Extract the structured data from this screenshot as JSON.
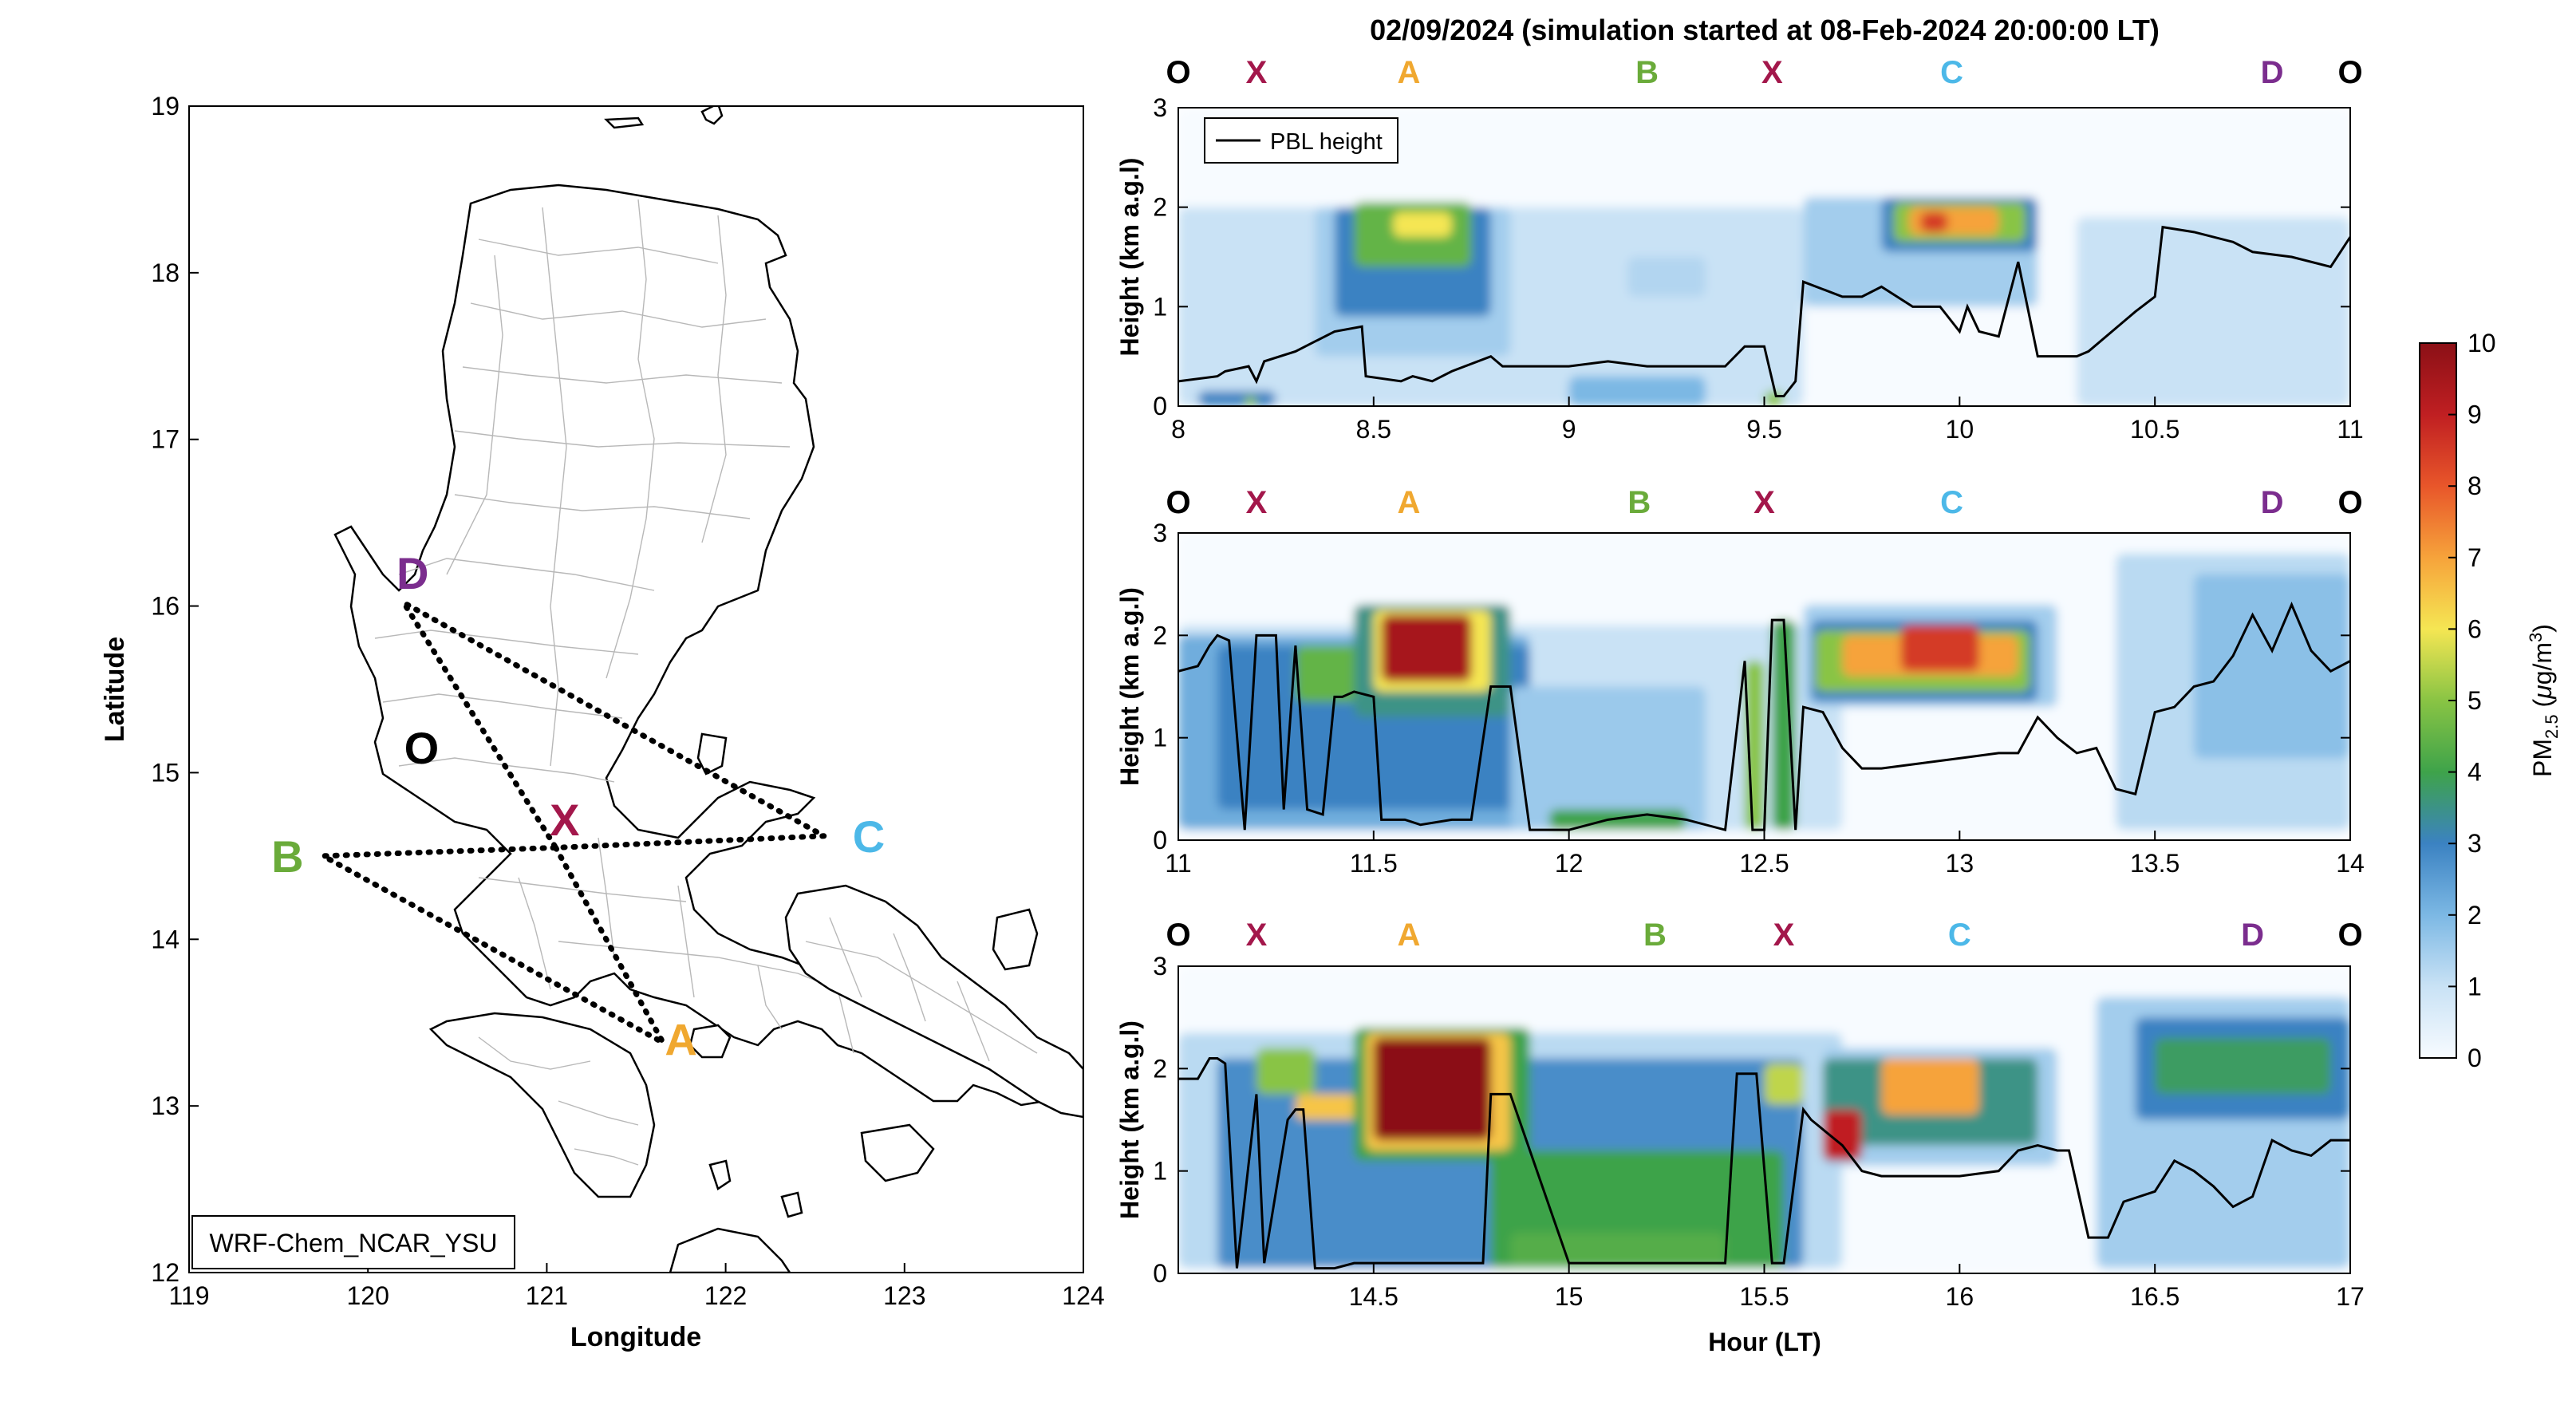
{
  "figure": {
    "title": "02/09/2024 (simulation started at 08-Feb-2024 20:00:00 LT)",
    "colors": {
      "site_O": "#000000",
      "site_X": "#a3174b",
      "site_A": "#f0a830",
      "site_B": "#6aab3a",
      "site_C": "#4cb8e8",
      "site_D": "#7b2d8e",
      "pbl_line": "#000000"
    }
  },
  "chart_data": [
    {
      "type": "map",
      "xlabel": "Longitude",
      "ylabel": "Latitude",
      "xlim": [
        119,
        124
      ],
      "ylim": [
        12,
        19
      ],
      "xticks": [
        "119",
        "120",
        "121",
        "122",
        "123",
        "124"
      ],
      "yticks": [
        "12",
        "13",
        "14",
        "15",
        "16",
        "17",
        "18",
        "19"
      ],
      "annotation": "WRF-Chem_NCAR_YSU",
      "sites": [
        {
          "id": "O",
          "lon": 120.3,
          "lat": 15.15
        },
        {
          "id": "X",
          "lon": 121.1,
          "lat": 14.72
        },
        {
          "id": "A",
          "lon": 121.75,
          "lat": 13.4
        },
        {
          "id": "B",
          "lon": 119.55,
          "lat": 14.5
        },
        {
          "id": "C",
          "lon": 122.8,
          "lat": 14.62
        },
        {
          "id": "D",
          "lon": 120.25,
          "lat": 16.2
        }
      ],
      "flight_path": [
        {
          "lon": 121.05,
          "lat": 14.55
        },
        {
          "lon": 121.65,
          "lat": 13.38
        },
        {
          "lon": 119.75,
          "lat": 14.5
        },
        {
          "lon": 121.05,
          "lat": 14.55
        },
        {
          "lon": 122.55,
          "lat": 14.62
        },
        {
          "lon": 120.2,
          "lat": 16.02
        },
        {
          "lon": 121.05,
          "lat": 14.55
        }
      ]
    },
    {
      "type": "heatmap",
      "xlabel": "",
      "ylabel": "Height (km a.g.l)",
      "xlim": [
        8,
        11
      ],
      "ylim": [
        0,
        3
      ],
      "xticks": [
        "8",
        "8.5",
        "9",
        "9.5",
        "10",
        "10.5",
        "11"
      ],
      "yticks": [
        "0",
        "1",
        "2",
        "3"
      ],
      "legend": "PBL height",
      "site_labels": [
        {
          "id": "O",
          "hour": 8.0
        },
        {
          "id": "X",
          "hour": 8.2
        },
        {
          "id": "A",
          "hour": 8.59
        },
        {
          "id": "B",
          "hour": 9.2
        },
        {
          "id": "X",
          "hour": 9.52
        },
        {
          "id": "C",
          "hour": 9.98
        },
        {
          "id": "D",
          "hour": 10.8
        },
        {
          "id": "O",
          "hour": 11.0
        }
      ],
      "pbl_height": {
        "x": [
          8.0,
          8.1,
          8.12,
          8.18,
          8.2,
          8.22,
          8.3,
          8.35,
          8.4,
          8.47,
          8.48,
          8.57,
          8.6,
          8.65,
          8.7,
          8.8,
          8.83,
          8.9,
          9.0,
          9.1,
          9.2,
          9.3,
          9.4,
          9.45,
          9.5,
          9.53,
          9.55,
          9.58,
          9.6,
          9.7,
          9.75,
          9.8,
          9.88,
          9.95,
          10.0,
          10.02,
          10.05,
          10.1,
          10.12,
          10.15,
          10.2,
          10.3,
          10.33,
          10.45,
          10.5,
          10.52,
          10.6,
          10.7,
          10.75,
          10.85,
          10.95,
          11.0
        ],
        "y": [
          0.25,
          0.3,
          0.35,
          0.4,
          0.25,
          0.45,
          0.55,
          0.65,
          0.75,
          0.8,
          0.3,
          0.25,
          0.3,
          0.25,
          0.35,
          0.5,
          0.4,
          0.4,
          0.4,
          0.45,
          0.4,
          0.4,
          0.4,
          0.6,
          0.6,
          0.1,
          0.1,
          0.25,
          1.25,
          1.1,
          1.1,
          1.2,
          1.0,
          1.0,
          0.75,
          1.0,
          0.75,
          0.7,
          1.0,
          1.45,
          0.5,
          0.5,
          0.55,
          0.95,
          1.1,
          1.8,
          1.75,
          1.65,
          1.55,
          1.5,
          1.4,
          1.7
        ]
      },
      "plumes": [
        {
          "x0": 8.0,
          "x1": 9.6,
          "y0": 0.0,
          "y1": 2.0,
          "value": 1.0
        },
        {
          "x0": 8.05,
          "x1": 8.25,
          "y0": 0.0,
          "y1": 0.15,
          "value": 3.0
        },
        {
          "x0": 8.17,
          "x1": 8.2,
          "y0": 0.0,
          "y1": 0.1,
          "value": 5.0
        },
        {
          "x0": 8.35,
          "x1": 8.85,
          "y0": 0.5,
          "y1": 2.0,
          "value": 1.5
        },
        {
          "x0": 8.4,
          "x1": 8.8,
          "y0": 0.9,
          "y1": 2.0,
          "value": 3.0
        },
        {
          "x0": 8.45,
          "x1": 8.75,
          "y0": 1.4,
          "y1": 2.05,
          "value": 4.5
        },
        {
          "x0": 8.55,
          "x1": 8.7,
          "y0": 1.7,
          "y1": 1.95,
          "value": 6.0
        },
        {
          "x0": 9.0,
          "x1": 9.35,
          "y0": 0.0,
          "y1": 0.3,
          "value": 2.0
        },
        {
          "x0": 9.15,
          "x1": 9.35,
          "y0": 1.1,
          "y1": 1.5,
          "value": 1.3
        },
        {
          "x0": 9.5,
          "x1": 9.55,
          "y0": 0.0,
          "y1": 0.15,
          "value": 5.0
        },
        {
          "x0": 9.6,
          "x1": 10.2,
          "y0": 1.0,
          "y1": 2.1,
          "value": 1.5
        },
        {
          "x0": 9.8,
          "x1": 10.2,
          "y0": 1.55,
          "y1": 2.1,
          "value": 3.0
        },
        {
          "x0": 9.83,
          "x1": 10.17,
          "y0": 1.65,
          "y1": 2.05,
          "value": 5.0
        },
        {
          "x0": 9.87,
          "x1": 10.1,
          "y0": 1.72,
          "y1": 2.0,
          "value": 7.0
        },
        {
          "x0": 9.9,
          "x1": 9.97,
          "y0": 1.75,
          "y1": 1.95,
          "value": 8.5
        },
        {
          "x0": 10.3,
          "x1": 11.0,
          "y0": 0.0,
          "y1": 1.9,
          "value": 1.0
        }
      ]
    },
    {
      "type": "heatmap",
      "xlabel": "",
      "ylabel": "Height (km a.g.l)",
      "xlim": [
        11,
        14
      ],
      "ylim": [
        0,
        3
      ],
      "xticks": [
        "11",
        "11.5",
        "12",
        "12.5",
        "13",
        "13.5",
        "14"
      ],
      "yticks": [
        "0",
        "1",
        "2",
        "3"
      ],
      "site_labels": [
        {
          "id": "O",
          "hour": 11.0
        },
        {
          "id": "X",
          "hour": 11.2
        },
        {
          "id": "A",
          "hour": 11.59
        },
        {
          "id": "B",
          "hour": 12.18
        },
        {
          "id": "X",
          "hour": 12.5
        },
        {
          "id": "C",
          "hour": 12.98
        },
        {
          "id": "D",
          "hour": 13.8
        },
        {
          "id": "O",
          "hour": 14.0
        }
      ],
      "pbl_height": {
        "x": [
          11.0,
          11.05,
          11.08,
          11.1,
          11.13,
          11.17,
          11.2,
          11.25,
          11.27,
          11.3,
          11.33,
          11.37,
          11.4,
          11.42,
          11.45,
          11.5,
          11.52,
          11.58,
          11.62,
          11.7,
          11.75,
          11.8,
          11.85,
          11.9,
          11.95,
          12.0,
          12.1,
          12.2,
          12.3,
          12.4,
          12.45,
          12.47,
          12.5,
          12.52,
          12.55,
          12.58,
          12.6,
          12.65,
          12.7,
          12.75,
          12.8,
          12.9,
          13.0,
          13.1,
          13.15,
          13.2,
          13.25,
          13.3,
          13.35,
          13.4,
          13.45,
          13.5,
          13.55,
          13.6,
          13.65,
          13.7,
          13.75,
          13.8,
          13.85,
          13.9,
          13.95,
          14.0
        ],
        "y": [
          1.65,
          1.7,
          1.9,
          2.0,
          1.95,
          0.1,
          2.0,
          2.0,
          0.3,
          1.9,
          0.3,
          0.25,
          1.4,
          1.4,
          1.45,
          1.4,
          0.2,
          0.2,
          0.15,
          0.2,
          0.2,
          1.5,
          1.5,
          0.1,
          0.1,
          0.1,
          0.2,
          0.25,
          0.2,
          0.1,
          1.75,
          0.1,
          0.1,
          2.15,
          2.15,
          0.1,
          1.3,
          1.25,
          0.9,
          0.7,
          0.7,
          0.75,
          0.8,
          0.85,
          0.85,
          1.2,
          1.0,
          0.85,
          0.9,
          0.5,
          0.45,
          1.25,
          1.3,
          1.5,
          1.55,
          1.8,
          2.2,
          1.85,
          2.3,
          1.85,
          1.65,
          1.75
        ]
      },
      "plumes": [
        {
          "x0": 11.0,
          "x1": 12.7,
          "y0": 0.1,
          "y1": 2.1,
          "value": 1.0
        },
        {
          "x0": 11.0,
          "x1": 11.9,
          "y0": 0.1,
          "y1": 2.0,
          "value": 2.2
        },
        {
          "x0": 11.1,
          "x1": 11.9,
          "y0": 0.3,
          "y1": 1.9,
          "value": 3.0
        },
        {
          "x0": 11.3,
          "x1": 11.65,
          "y0": 1.35,
          "y1": 1.9,
          "value": 4.5
        },
        {
          "x0": 11.45,
          "x1": 11.85,
          "y0": 1.2,
          "y1": 2.3,
          "value": 3.5
        },
        {
          "x0": 11.5,
          "x1": 11.8,
          "y0": 1.45,
          "y1": 2.25,
          "value": 6.0
        },
        {
          "x0": 11.52,
          "x1": 11.75,
          "y0": 1.55,
          "y1": 2.2,
          "value": 9.5
        },
        {
          "x0": 11.85,
          "x1": 12.35,
          "y0": 0.1,
          "y1": 1.5,
          "value": 1.6
        },
        {
          "x0": 11.95,
          "x1": 12.3,
          "y0": 0.1,
          "y1": 0.3,
          "value": 4.0
        },
        {
          "x0": 12.45,
          "x1": 12.5,
          "y0": 0.1,
          "y1": 1.75,
          "value": 5.0
        },
        {
          "x0": 12.52,
          "x1": 12.58,
          "y0": 0.1,
          "y1": 2.15,
          "value": 4.0
        },
        {
          "x0": 12.6,
          "x1": 13.25,
          "y0": 1.3,
          "y1": 2.3,
          "value": 1.5
        },
        {
          "x0": 12.62,
          "x1": 13.2,
          "y0": 1.35,
          "y1": 2.15,
          "value": 3.0
        },
        {
          "x0": 12.63,
          "x1": 13.18,
          "y0": 1.45,
          "y1": 2.05,
          "value": 5.0
        },
        {
          "x0": 12.7,
          "x1": 13.15,
          "y0": 1.6,
          "y1": 2.0,
          "value": 7.0
        },
        {
          "x0": 12.85,
          "x1": 13.05,
          "y0": 1.65,
          "y1": 2.1,
          "value": 8.5
        },
        {
          "x0": 13.4,
          "x1": 14.0,
          "y0": 0.1,
          "y1": 2.8,
          "value": 1.2
        },
        {
          "x0": 13.6,
          "x1": 14.0,
          "y0": 0.8,
          "y1": 2.6,
          "value": 1.8
        }
      ]
    },
    {
      "type": "heatmap",
      "xlabel": "Hour (LT)",
      "ylabel": "Height (km a.g.l)",
      "xlim": [
        14,
        17
      ],
      "ylim": [
        0,
        3
      ],
      "xticks": [
        "14.5",
        "15",
        "15.5",
        "16",
        "16.5",
        "17"
      ],
      "yticks": [
        "0",
        "1",
        "2",
        "3"
      ],
      "site_labels": [
        {
          "id": "O",
          "hour": 14.0
        },
        {
          "id": "X",
          "hour": 14.2
        },
        {
          "id": "A",
          "hour": 14.59
        },
        {
          "id": "B",
          "hour": 15.22
        },
        {
          "id": "X",
          "hour": 15.55
        },
        {
          "id": "C",
          "hour": 16.0
        },
        {
          "id": "D",
          "hour": 16.75
        },
        {
          "id": "O",
          "hour": 17.0
        }
      ],
      "pbl_height": {
        "x": [
          14.0,
          14.05,
          14.08,
          14.1,
          14.12,
          14.15,
          14.2,
          14.22,
          14.28,
          14.3,
          14.32,
          14.35,
          14.4,
          14.45,
          14.6,
          14.7,
          14.75,
          14.78,
          14.8,
          14.85,
          15.0,
          15.1,
          15.2,
          15.3,
          15.4,
          15.43,
          15.48,
          15.52,
          15.55,
          15.6,
          15.62,
          15.7,
          15.75,
          15.8,
          15.9,
          16.0,
          16.1,
          16.15,
          16.2,
          16.25,
          16.28,
          16.33,
          16.38,
          16.42,
          16.5,
          16.55,
          16.6,
          16.65,
          16.7,
          16.75,
          16.8,
          16.85,
          16.9,
          16.95,
          17.0
        ],
        "y": [
          1.9,
          1.9,
          2.1,
          2.1,
          2.05,
          0.05,
          1.75,
          0.1,
          1.5,
          1.6,
          1.6,
          0.05,
          0.05,
          0.1,
          0.1,
          0.1,
          0.1,
          0.1,
          1.75,
          1.75,
          0.1,
          0.1,
          0.1,
          0.1,
          0.1,
          1.95,
          1.95,
          0.1,
          0.1,
          1.6,
          1.5,
          1.25,
          1.0,
          0.95,
          0.95,
          0.95,
          1.0,
          1.2,
          1.25,
          1.2,
          1.2,
          0.35,
          0.35,
          0.7,
          0.8,
          1.1,
          1.0,
          0.85,
          0.65,
          0.75,
          1.3,
          1.2,
          1.15,
          1.3,
          1.3
        ]
      },
      "plumes": [
        {
          "x0": 14.0,
          "x1": 15.7,
          "y0": 0.05,
          "y1": 2.35,
          "value": 1.2
        },
        {
          "x0": 14.1,
          "x1": 15.6,
          "y0": 0.05,
          "y1": 2.1,
          "value": 2.8
        },
        {
          "x0": 14.2,
          "x1": 14.35,
          "y0": 1.75,
          "y1": 2.2,
          "value": 5.0
        },
        {
          "x0": 14.3,
          "x1": 14.5,
          "y0": 1.5,
          "y1": 1.75,
          "value": 6.5
        },
        {
          "x0": 14.45,
          "x1": 14.9,
          "y0": 1.1,
          "y1": 2.4,
          "value": 4.0
        },
        {
          "x0": 14.48,
          "x1": 14.85,
          "y0": 1.2,
          "y1": 2.35,
          "value": 6.5
        },
        {
          "x0": 14.5,
          "x1": 14.8,
          "y0": 1.3,
          "y1": 2.3,
          "value": 10.0
        },
        {
          "x0": 14.8,
          "x1": 15.55,
          "y0": 0.05,
          "y1": 1.2,
          "value": 4.0
        },
        {
          "x0": 14.85,
          "x1": 15.4,
          "y0": 0.05,
          "y1": 0.4,
          "value": 4.3
        },
        {
          "x0": 15.5,
          "x1": 15.6,
          "y0": 1.65,
          "y1": 2.05,
          "value": 5.5
        },
        {
          "x0": 15.65,
          "x1": 16.25,
          "y0": 1.05,
          "y1": 2.2,
          "value": 1.5
        },
        {
          "x0": 15.65,
          "x1": 16.2,
          "y0": 1.25,
          "y1": 2.1,
          "value": 3.5
        },
        {
          "x0": 15.65,
          "x1": 15.75,
          "y0": 1.1,
          "y1": 1.6,
          "value": 9.0
        },
        {
          "x0": 15.8,
          "x1": 16.05,
          "y0": 1.55,
          "y1": 2.1,
          "value": 7.0
        },
        {
          "x0": 16.35,
          "x1": 17.0,
          "y0": 0.05,
          "y1": 2.7,
          "value": 1.5
        },
        {
          "x0": 16.45,
          "x1": 17.0,
          "y0": 1.5,
          "y1": 2.5,
          "value": 3.0
        },
        {
          "x0": 16.5,
          "x1": 16.95,
          "y0": 1.75,
          "y1": 2.3,
          "value": 3.8
        }
      ]
    },
    {
      "type": "colorbar",
      "label_main": "PM",
      "label_sub": "2.5",
      "label_unit_prefix": " (",
      "label_unit_mu": "μ",
      "label_unit_g": "g/m",
      "label_unit_sup": "3",
      "label_unit_suffix": ")",
      "range": [
        0,
        10
      ],
      "ticks": [
        "0",
        "1",
        "2",
        "3",
        "4",
        "5",
        "6",
        "7",
        "8",
        "9",
        "10"
      ],
      "stops": [
        {
          "value": 0,
          "color": "#f7fbff"
        },
        {
          "value": 1,
          "color": "#c9e2f5"
        },
        {
          "value": 2,
          "color": "#7cb8e4"
        },
        {
          "value": 3,
          "color": "#3b82c2"
        },
        {
          "value": 4,
          "color": "#3ea34a"
        },
        {
          "value": 5,
          "color": "#89c444"
        },
        {
          "value": 6,
          "color": "#f5e653"
        },
        {
          "value": 7,
          "color": "#f6a33b"
        },
        {
          "value": 8,
          "color": "#e8562a"
        },
        {
          "value": 9,
          "color": "#c01f22"
        },
        {
          "value": 10,
          "color": "#8b1016"
        }
      ]
    }
  ]
}
